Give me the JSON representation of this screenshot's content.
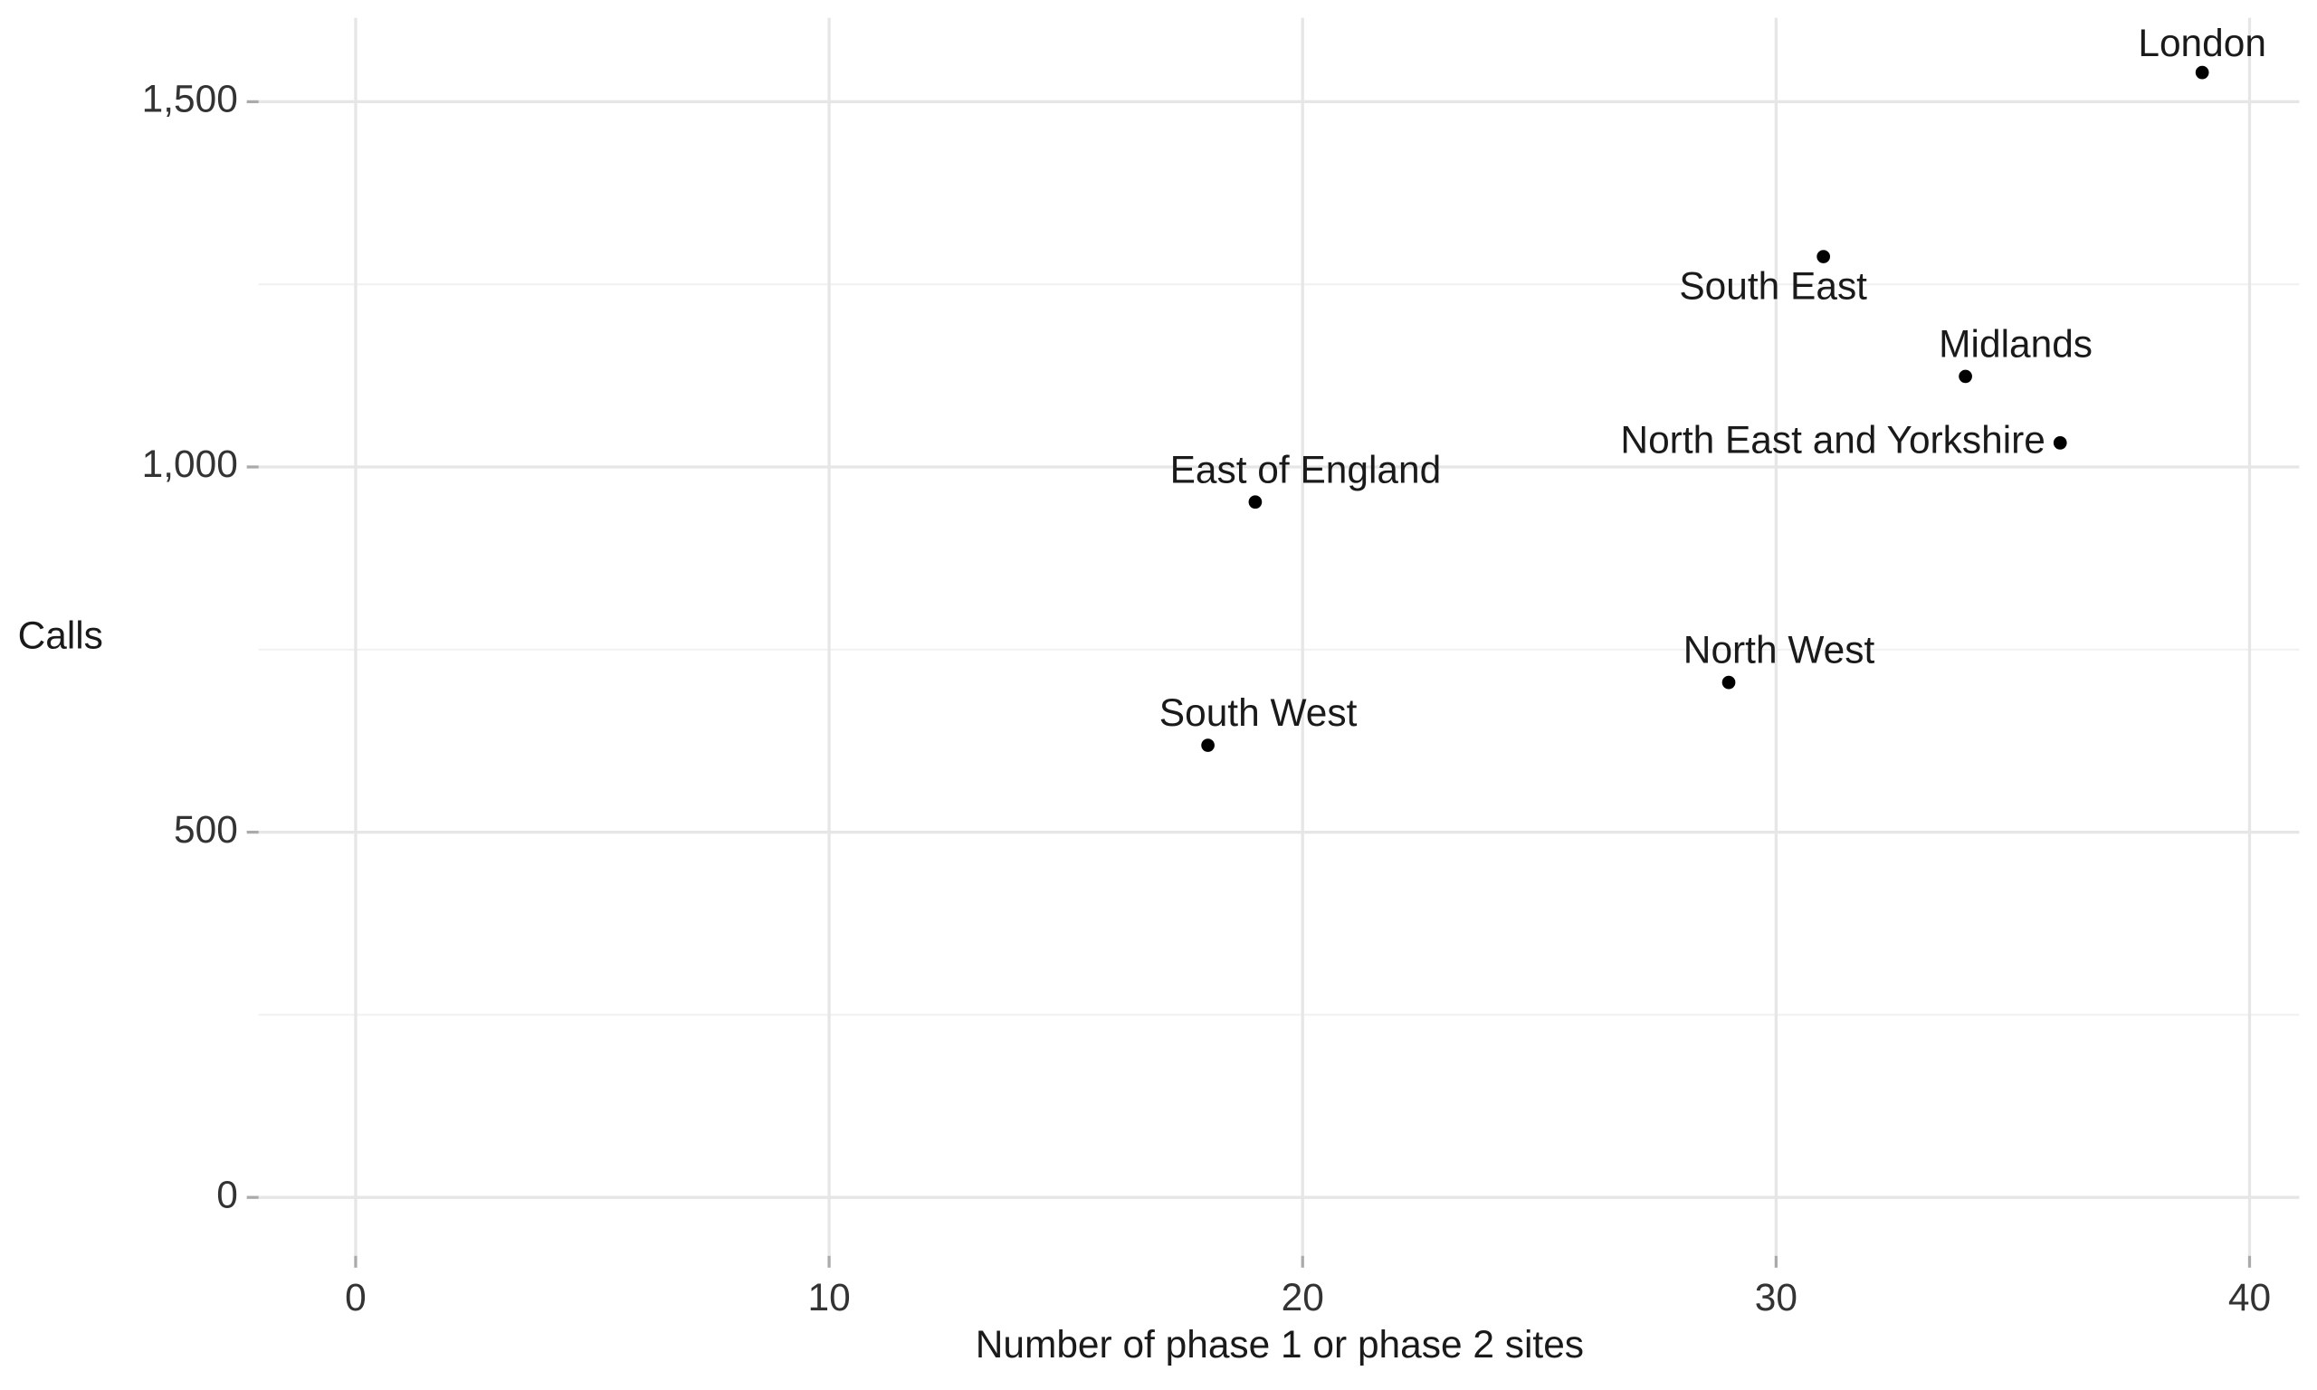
{
  "chart_data": {
    "type": "scatter",
    "x_label": "Number of phase 1 or phase 2 sites",
    "y_label": "Calls",
    "labels": [
      "London",
      "South East",
      "Midlands",
      "North East and Yorkshire",
      "East of England",
      "North West",
      "South West"
    ],
    "x": [
      39,
      31,
      34,
      36,
      19,
      29,
      18
    ],
    "values": [
      1540,
      1288,
      1124,
      1033,
      952,
      705,
      619
    ],
    "color": "#000000",
    "xlim": [
      -2.05,
      41.05
    ],
    "ylim": [
      -80,
      1615
    ],
    "xticks": [
      0,
      10,
      20,
      30,
      40
    ],
    "yticks": [
      0,
      500,
      {
        "value": 1000,
        "label": "1,000"
      },
      {
        "value": 1500,
        "label": "1,500"
      }
    ],
    "yminor": [
      250,
      750,
      1250
    ],
    "grid": true
  }
}
